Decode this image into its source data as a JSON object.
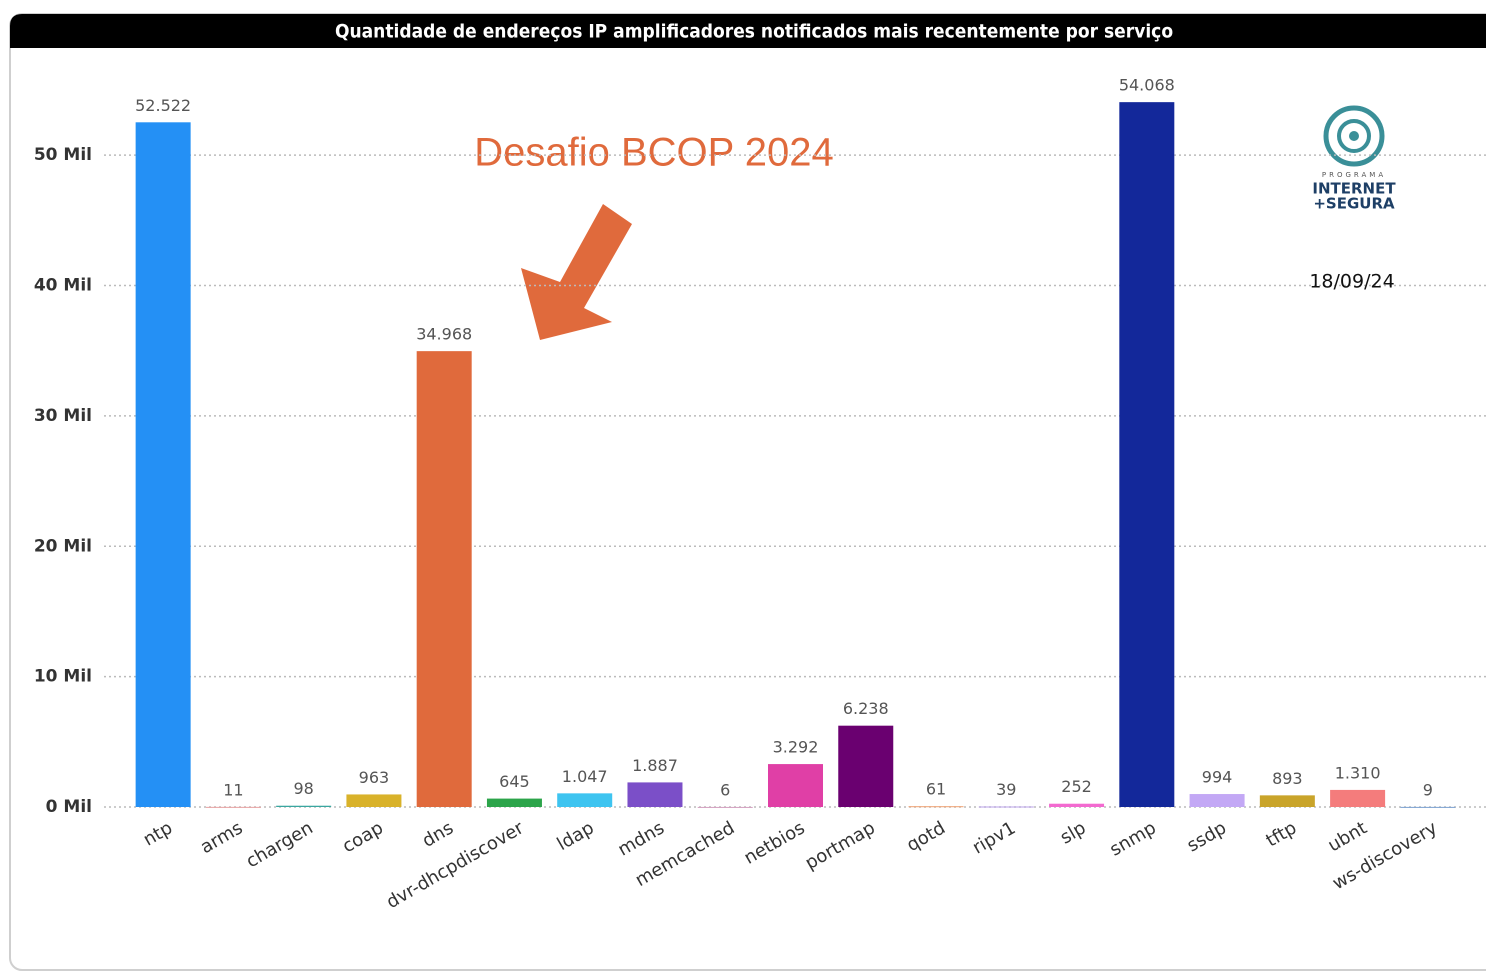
{
  "chart_data": {
    "type": "bar",
    "title": "Quantidade de endereços IP amplificadores notificados mais recentemente por serviço",
    "categories": [
      "ntp",
      "arms",
      "chargen",
      "coap",
      "dns",
      "dvr-dhcpdiscover",
      "ldap",
      "mdns",
      "memcached",
      "netbios",
      "portmap",
      "qotd",
      "ripv1",
      "slp",
      "snmp",
      "ssdp",
      "tftp",
      "ubnt",
      "ws-discovery"
    ],
    "values": [
      52522,
      11,
      98,
      963,
      34968,
      645,
      1047,
      1887,
      6,
      3292,
      6238,
      61,
      39,
      252,
      54068,
      994,
      893,
      1310,
      9
    ],
    "value_labels": [
      "52.522",
      "11",
      "98",
      "963",
      "34.968",
      "645",
      "1.047",
      "1.887",
      "6",
      "3.292",
      "6.238",
      "61",
      "39",
      "252",
      "54.068",
      "994",
      "893",
      "1.310",
      "9"
    ],
    "colors": [
      "#2490f5",
      "#e8a0a0",
      "#3aa7a0",
      "#d9b22a",
      "#e06a3c",
      "#2ca44a",
      "#3ec4f0",
      "#7b4fc8",
      "#d4a0c0",
      "#e03fa6",
      "#6a0070",
      "#f0a070",
      "#b9a0e8",
      "#f36ad0",
      "#13289a",
      "#c3a8f5",
      "#c9a42a",
      "#f47c7c",
      "#7aa0d0"
    ],
    "ylim": [
      0,
      55000
    ],
    "yticks": [
      {
        "value": 0,
        "label": "0 Mil"
      },
      {
        "value": 10000,
        "label": "10 Mil"
      },
      {
        "value": 20000,
        "label": "20 Mil"
      },
      {
        "value": 30000,
        "label": "30 Mil"
      },
      {
        "value": 40000,
        "label": "40 Mil"
      },
      {
        "value": 50000,
        "label": "50 Mil"
      }
    ],
    "grid": true,
    "annotation": "Desafio BCOP 2024",
    "date": "18/09/24",
    "logo": {
      "top": "PROGRAMA",
      "middle": "INTERNET",
      "bottom": "+SEGURA"
    }
  }
}
